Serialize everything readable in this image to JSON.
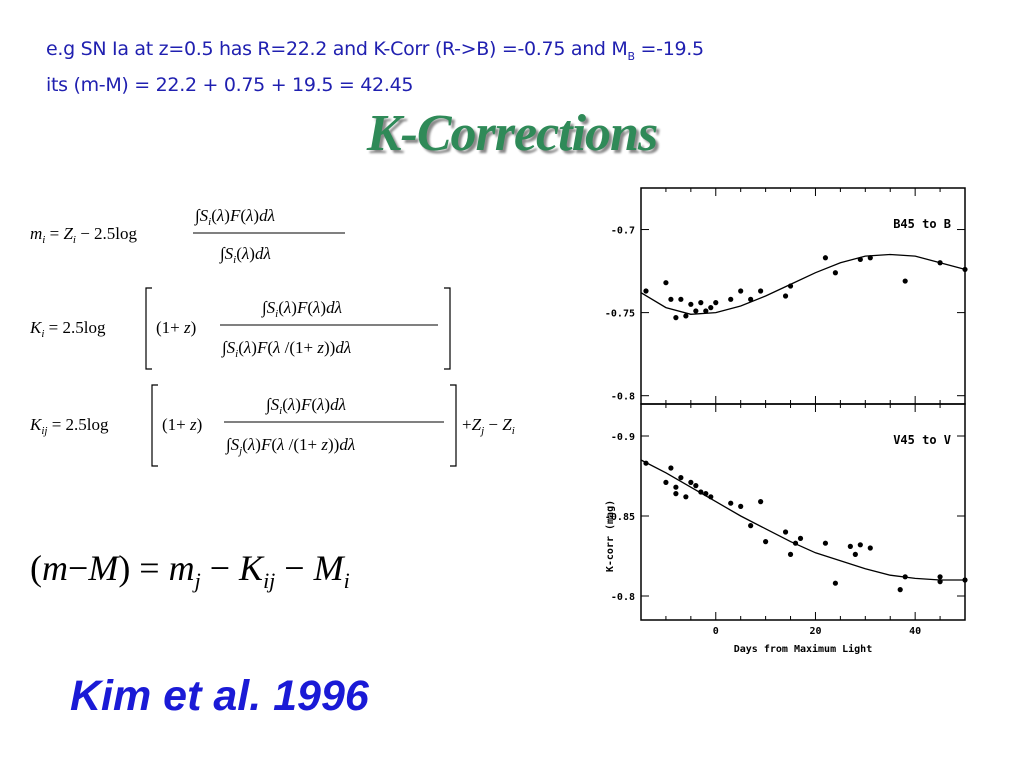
{
  "intro": {
    "line1_prefix": "e.g SN Ia at z=0.5 has R=22.2 and K-Corr (R->B) =-0.75 and M",
    "line1_subscript": "B",
    "line1_suffix": " =-19.5",
    "line2": "its (m-M) = 22.2 + 0.75 + 19.5 = 42.45"
  },
  "title": "K-Corrections",
  "credit": "Kim et al. 1996",
  "chart_data": [
    {
      "type": "scatter",
      "panel_label": "B45 to B",
      "ylabel": "K-corr (mag)",
      "ylim": [
        -0.675,
        -0.805
      ],
      "xlim": [
        -15,
        50
      ],
      "yticks": [
        -0.8,
        -0.75,
        -0.7
      ],
      "x": [
        -14,
        -10,
        -9,
        -8,
        -7,
        -6,
        -5,
        -4,
        -3,
        -2,
        -1,
        0,
        3,
        5,
        7,
        9,
        14,
        15,
        22,
        24,
        29,
        31,
        38,
        45,
        50
      ],
      "y": [
        -0.737,
        -0.732,
        -0.742,
        -0.753,
        -0.742,
        -0.752,
        -0.745,
        -0.749,
        -0.744,
        -0.749,
        -0.747,
        -0.744,
        -0.742,
        -0.737,
        -0.742,
        -0.737,
        -0.74,
        -0.734,
        -0.717,
        -0.726,
        -0.718,
        -0.717,
        -0.731,
        -0.72,
        -0.724
      ],
      "fit": {
        "x": [
          -15,
          -10,
          -5,
          0,
          5,
          10,
          15,
          20,
          25,
          30,
          35,
          40,
          45,
          50
        ],
        "y": [
          -0.738,
          -0.747,
          -0.751,
          -0.75,
          -0.746,
          -0.74,
          -0.733,
          -0.726,
          -0.72,
          -0.716,
          -0.715,
          -0.716,
          -0.72,
          -0.724
        ]
      }
    },
    {
      "type": "scatter",
      "panel_label": "V45 to V",
      "ylabel": "",
      "ylim": [
        -0.92,
        -0.785
      ],
      "xlim": [
        -15,
        50
      ],
      "yticks": [
        -0.9,
        -0.85,
        -0.8
      ],
      "xticks": [
        0,
        20,
        40
      ],
      "xlabel": "Days from Maximum Light",
      "x": [
        -14,
        -10,
        -9,
        -8,
        -8,
        -7,
        -6,
        -5,
        -4,
        -3,
        -2,
        -1,
        3,
        5,
        7,
        9,
        10,
        14,
        15,
        16,
        17,
        22,
        24,
        27,
        28,
        29,
        31,
        37,
        38,
        45,
        45,
        50
      ],
      "y": [
        -0.883,
        -0.871,
        -0.88,
        -0.864,
        -0.868,
        -0.874,
        -0.862,
        -0.871,
        -0.869,
        -0.865,
        -0.864,
        -0.862,
        -0.858,
        -0.856,
        -0.844,
        -0.859,
        -0.834,
        -0.84,
        -0.826,
        -0.833,
        -0.836,
        -0.833,
        -0.808,
        -0.831,
        -0.826,
        -0.832,
        -0.83,
        -0.804,
        -0.812,
        -0.809,
        -0.812,
        -0.81
      ],
      "fit": {
        "x": [
          -15,
          -10,
          -5,
          0,
          5,
          10,
          15,
          20,
          25,
          30,
          35,
          40,
          45,
          50
        ],
        "y": [
          -0.885,
          -0.877,
          -0.868,
          -0.859,
          -0.85,
          -0.842,
          -0.834,
          -0.827,
          -0.822,
          -0.817,
          -0.813,
          -0.811,
          -0.81,
          -0.81
        ]
      }
    }
  ]
}
